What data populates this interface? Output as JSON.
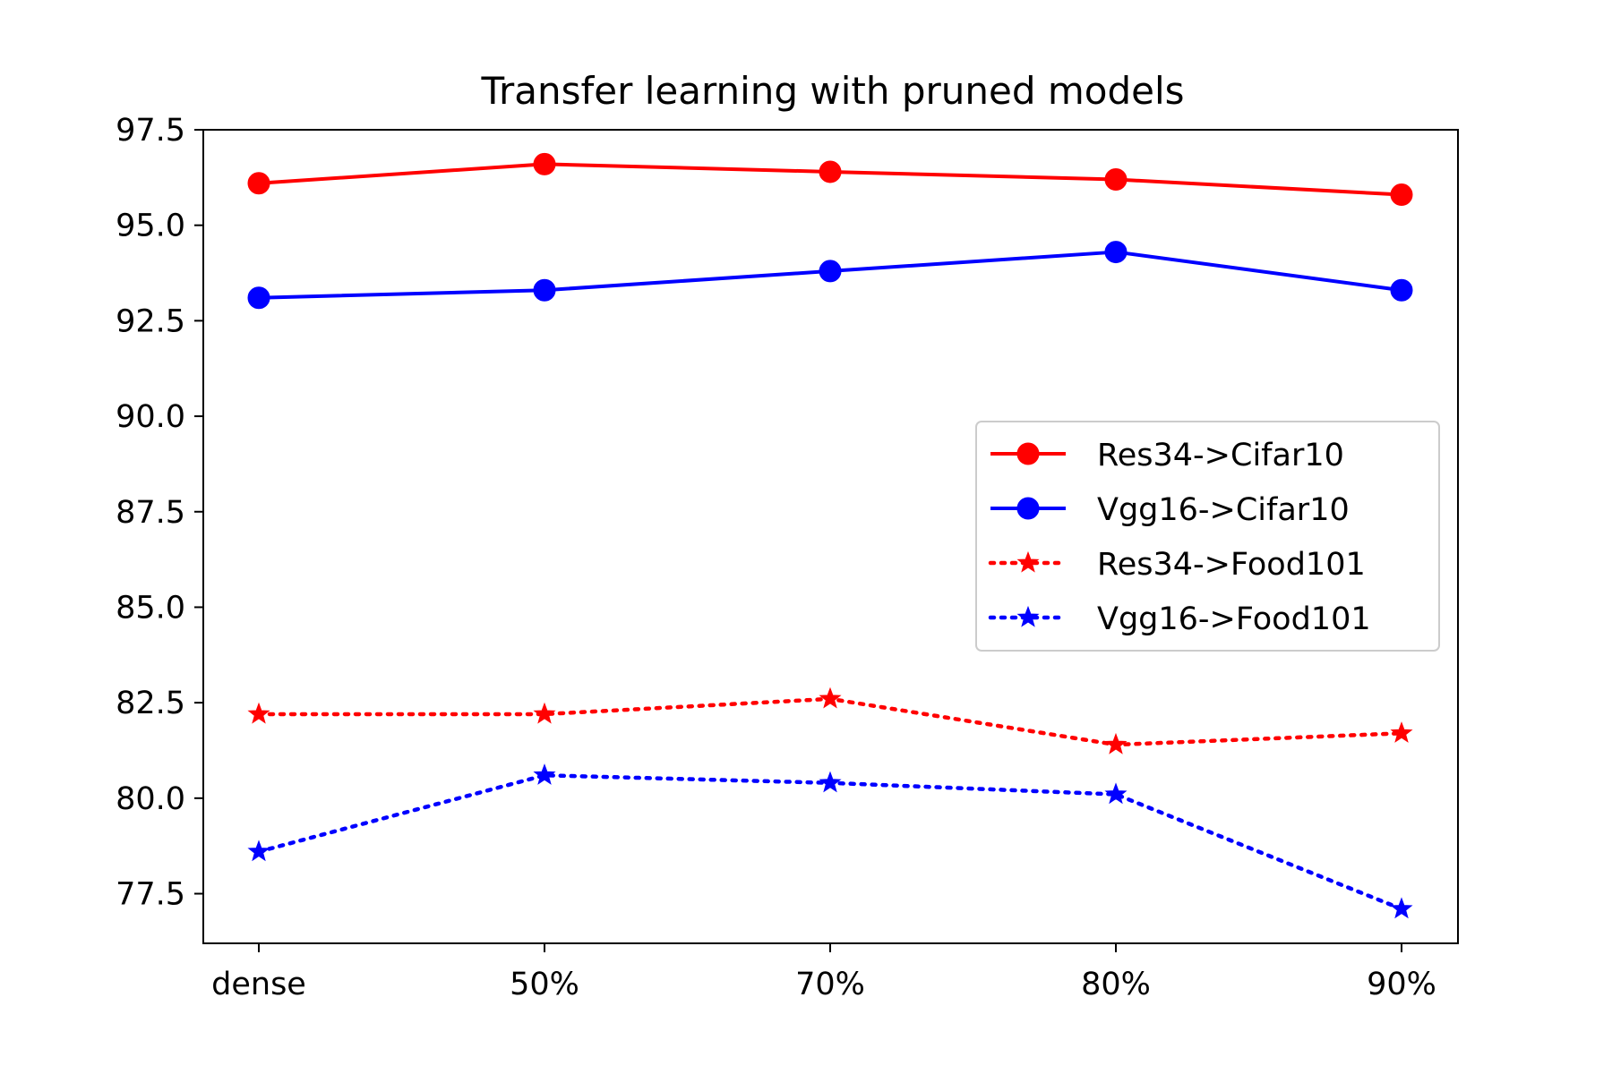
{
  "chart_data": {
    "type": "line",
    "title": "Transfer learning with pruned models",
    "xlabel": "",
    "ylabel": "",
    "categories": [
      "dense",
      "50%",
      "70%",
      "80%",
      "90%"
    ],
    "ylim": [
      76.2,
      97.5
    ],
    "yticks": [
      "77.5",
      "80.0",
      "82.5",
      "85.0",
      "87.5",
      "90.0",
      "92.5",
      "95.0",
      "97.5"
    ],
    "grid": false,
    "legend_position": "center-right",
    "series": [
      {
        "name": "Res34->Cifar10",
        "values": [
          96.1,
          96.6,
          96.4,
          96.2,
          95.8
        ],
        "color": "#ff0000",
        "line_style": "solid",
        "marker": "circle"
      },
      {
        "name": "Vgg16->Cifar10",
        "values": [
          93.1,
          93.3,
          93.8,
          94.3,
          93.3
        ],
        "color": "#0000ff",
        "line_style": "solid",
        "marker": "circle"
      },
      {
        "name": "Res34->Food101",
        "values": [
          82.2,
          82.2,
          82.6,
          81.4,
          81.7
        ],
        "color": "#ff0000",
        "line_style": "dotted",
        "marker": "star"
      },
      {
        "name": "Vgg16->Food101",
        "values": [
          78.6,
          80.6,
          80.4,
          80.1,
          77.1
        ],
        "color": "#0000ff",
        "line_style": "dotted",
        "marker": "star"
      }
    ]
  }
}
